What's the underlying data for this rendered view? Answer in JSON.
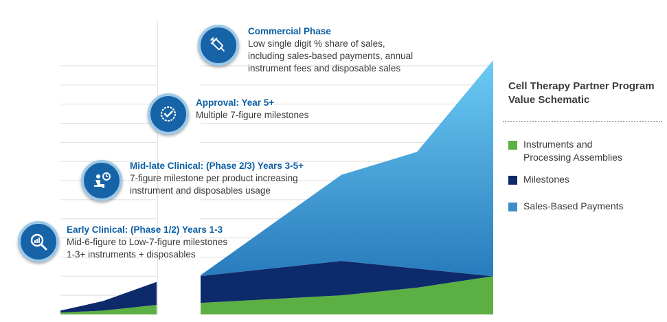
{
  "chart_data": {
    "type": "area",
    "title": "Cell Therapy Partner Program Value Schematic",
    "xlabel": "",
    "ylabel": "",
    "grid": true,
    "legend_position": "right",
    "stacked": true,
    "x": [
      0,
      1,
      2,
      3,
      4,
      5,
      6
    ],
    "series": [
      {
        "name": "Instruments and Processing Assemblies",
        "color": "#5cb043",
        "values": [
          1,
          2,
          5,
          6,
          10,
          14,
          20
        ]
      },
      {
        "name": "Milestones",
        "color": "#0d2a6b",
        "values": [
          1,
          5,
          12,
          14,
          18,
          10,
          0
        ]
      },
      {
        "name": "Sales-Based Payments",
        "color": "#3a8fc8",
        "values": [
          0,
          0,
          0,
          0,
          45,
          61,
          113
        ]
      }
    ],
    "ylim": [
      0,
      130
    ]
  },
  "phases": [
    {
      "icon": "magnifier-chart-icon",
      "title": "Early Clinical: (Phase 1/2) Years 1-3",
      "lines": [
        "Mid-6-figure to Low-7-figure milestones",
        "1-3+ instruments + disposables"
      ]
    },
    {
      "icon": "person-clock-icon",
      "title": "Mid-late Clinical: (Phase 2/3) Years 3-5+",
      "lines": [
        "7-figure milestone per product increasing",
        "instrument and disposables usage"
      ]
    },
    {
      "icon": "approval-badge-icon",
      "title": "Approval: Year 5+",
      "lines": [
        "Multiple 7-figure milestones"
      ]
    },
    {
      "icon": "syringe-icon",
      "title": "Commercial Phase",
      "lines": [
        "Low single digit % share of sales,",
        "including sales-based payments, annual",
        "instrument fees and disposable sales"
      ]
    }
  ]
}
